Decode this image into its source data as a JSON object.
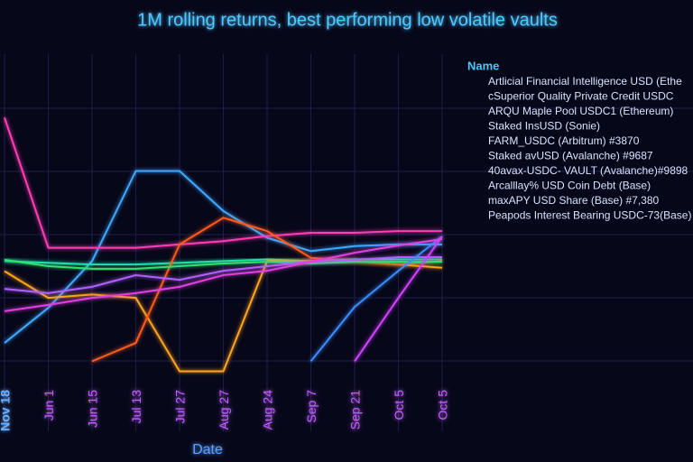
{
  "chart_data": {
    "type": "line",
    "title": "1M rolling returns, best performing low volatile vaults",
    "x_label": "Date",
    "legend_title": "Name",
    "grid": true,
    "ylim": [
      0,
      100
    ],
    "categories": [
      "Nov 18",
      "Jun 1",
      "Jun 15",
      "Jul 13",
      "Jul 27",
      "Aug 27",
      "Aug 24",
      "Sep 7",
      "Sep 21",
      "Oct 5",
      "Oct 5"
    ],
    "series": [
      {
        "name": "Artlicial Financial Intelligence USD (Ethe",
        "color": "#3ea8ff",
        "values": [
          13.5,
          24,
          38,
          65,
          65,
          53,
          45,
          41,
          42.5,
          43,
          43
        ]
      },
      {
        "name": "cSuperior Quality Private Credit USDC",
        "color": "#1ee0b0",
        "values": [
          38,
          37.5,
          37,
          37,
          37.5,
          38,
          38.5,
          38,
          38.5,
          38.5,
          38.5
        ]
      },
      {
        "name": "ARQU Maple Pool USDC1 (Ethereum)",
        "color": "#ffa31a",
        "values": [
          35,
          27,
          28,
          27,
          5,
          5,
          38,
          38,
          38,
          37,
          36
        ]
      },
      {
        "name": "Staked InsUSD (Sonie)",
        "color": "#ff3cb4",
        "values": [
          81,
          42,
          42,
          42,
          43,
          44,
          45.5,
          46.5,
          46.5,
          47,
          47
        ]
      },
      {
        "name": "FARM_USDC (Arbitrum) #3870",
        "color": "#ff5a1a",
        "values": [
          null,
          null,
          8,
          13.5,
          43,
          51,
          47,
          39,
          38,
          37,
          38
        ]
      },
      {
        "name": "Staked avUSD (Avalanche) #9687",
        "color": "#30e070",
        "values": [
          38.4,
          36.5,
          35.7,
          35.7,
          36.5,
          37.3,
          37.8,
          37.3,
          37.8,
          37.8,
          37.8
        ]
      },
      {
        "name": "40avax-USDC- VAULT (Avalanche)#9898",
        "color": "#b060ff",
        "values": [
          29.7,
          28.4,
          30.3,
          33.8,
          32.4,
          35.1,
          36.5,
          37.8,
          38.4,
          39.2,
          39.2
        ]
      },
      {
        "name": "Arcalllay% USD Coin Debt (Base)",
        "color": "#3a8cff",
        "values": [
          null,
          null,
          null,
          null,
          null,
          null,
          null,
          8,
          24.3,
          35.1,
          45.4
        ]
      },
      {
        "name": "maxAPY USD Share (Base) #7,380",
        "color": "#d040ff",
        "values": [
          null,
          null,
          null,
          null,
          null,
          null,
          null,
          null,
          8,
          27,
          45.4
        ]
      },
      {
        "name": "Peapods Interest Bearing USDC-73(Base)",
        "color": "#e040e0",
        "values": [
          23,
          24.9,
          27,
          28.4,
          30.3,
          33.8,
          35.1,
          37.8,
          40.5,
          42.7,
          44.6
        ]
      }
    ]
  }
}
